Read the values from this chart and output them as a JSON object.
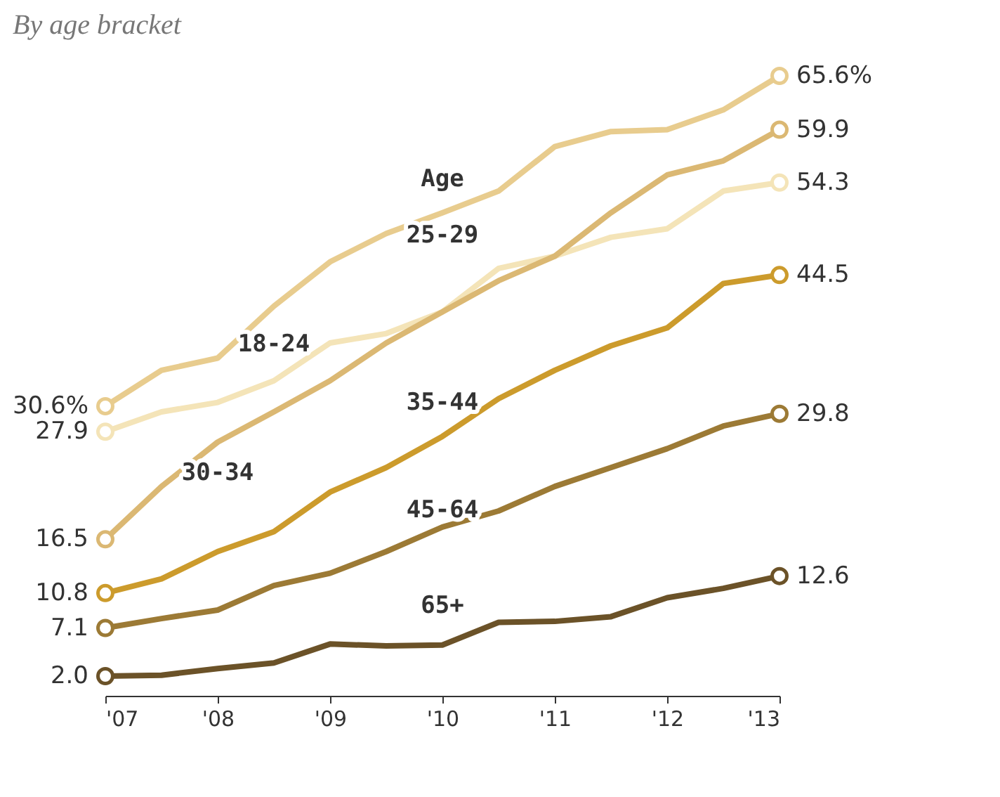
{
  "chart_data": {
    "type": "line",
    "title": "By age bracket",
    "x": [
      2007,
      2007.5,
      2008,
      2008.5,
      2009,
      2009.5,
      2010,
      2010.5,
      2011,
      2011.5,
      2012,
      2012.5,
      2013
    ],
    "xlim": [
      2007,
      2013
    ],
    "xticks": [
      {
        "value": 2007,
        "label": "'07"
      },
      {
        "value": 2008,
        "label": "'08"
      },
      {
        "value": 2009,
        "label": "'09"
      },
      {
        "value": 2010,
        "label": "'10"
      },
      {
        "value": 2011,
        "label": "'11"
      },
      {
        "value": 2012,
        "label": "'12"
      },
      {
        "value": 2013,
        "label": "'13"
      }
    ],
    "grid": false,
    "line_style": "solid",
    "annotations": [
      "Age"
    ],
    "series": [
      {
        "name": "25-29",
        "color": "#e8cc8e",
        "values": [
          30.6,
          34.4,
          35.7,
          41.2,
          45.9,
          48.9,
          51.1,
          53.4,
          58.1,
          59.7,
          59.9,
          62.0,
          65.6
        ],
        "value_labels": [
          "30.6%",
          null,
          null,
          null,
          null,
          null,
          null,
          null,
          null,
          null,
          null,
          null,
          "65.6%"
        ]
      },
      {
        "name": "18-24",
        "color": "#f4e4b8",
        "values": [
          27.9,
          30.0,
          31.0,
          33.3,
          37.3,
          38.3,
          40.6,
          45.2,
          46.5,
          48.5,
          49.4,
          53.4,
          54.3
        ],
        "value_labels": [
          "27.9",
          null,
          null,
          null,
          null,
          null,
          null,
          null,
          null,
          null,
          null,
          null,
          "54.3"
        ]
      },
      {
        "name": "30-34",
        "color": "#dbb873",
        "values": [
          16.5,
          22.1,
          26.8,
          30.0,
          33.3,
          37.3,
          40.6,
          43.9,
          46.5,
          51.1,
          55.1,
          56.6,
          59.9
        ],
        "value_labels": [
          "16.5",
          null,
          null,
          null,
          null,
          null,
          null,
          null,
          null,
          null,
          null,
          null,
          "59.9"
        ]
      },
      {
        "name": "35-44",
        "color": "#cc9b2c",
        "values": [
          10.8,
          12.3,
          15.2,
          17.3,
          21.5,
          24.1,
          27.4,
          31.4,
          34.4,
          37.0,
          38.9,
          43.6,
          44.5
        ],
        "value_labels": [
          "10.8",
          null,
          null,
          null,
          null,
          null,
          null,
          null,
          null,
          null,
          null,
          null,
          "44.5"
        ]
      },
      {
        "name": "45-64",
        "color": "#9c7a35",
        "values": [
          7.1,
          8.1,
          9.0,
          11.6,
          12.9,
          15.2,
          17.8,
          19.5,
          22.1,
          24.1,
          26.1,
          28.5,
          29.8
        ],
        "value_labels": [
          "7.1",
          null,
          null,
          null,
          null,
          null,
          null,
          null,
          null,
          null,
          null,
          null,
          "29.8"
        ]
      },
      {
        "name": "65+",
        "color": "#6b5228",
        "values": [
          2.0,
          2.1,
          2.8,
          3.4,
          5.4,
          5.2,
          5.3,
          7.7,
          7.8,
          8.3,
          10.3,
          11.3,
          12.6
        ],
        "value_labels": [
          "2.0",
          null,
          null,
          null,
          null,
          null,
          null,
          null,
          null,
          null,
          null,
          null,
          "12.6"
        ]
      }
    ]
  }
}
